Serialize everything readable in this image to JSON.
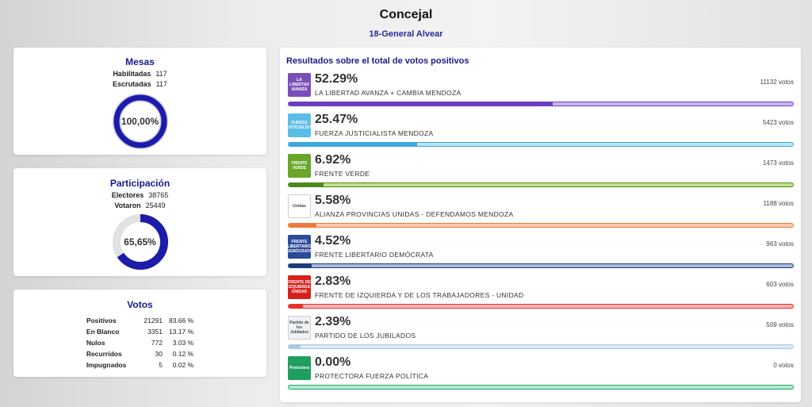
{
  "header": {
    "title": "Concejal",
    "subtitle": "18-General Alvear"
  },
  "mesas": {
    "title": "Mesas",
    "rows": [
      {
        "label": "Habilitadas",
        "value": "117"
      },
      {
        "label": "Escrutadas",
        "value": "117"
      }
    ],
    "donut_label": "100,00%",
    "donut_fraction": 1.0
  },
  "participacion": {
    "title": "Participación",
    "rows": [
      {
        "label": "Electores",
        "value": "38765"
      },
      {
        "label": "Votaron",
        "value": "25449"
      }
    ],
    "donut_label": "65,65%",
    "donut_fraction": 0.6565
  },
  "votos": {
    "title": "Votos",
    "rows": [
      {
        "label": "Positivos",
        "value": "21291",
        "pct": "83.66 %"
      },
      {
        "label": "En Blanco",
        "value": "3351",
        "pct": "13.17 %"
      },
      {
        "label": "Nulos",
        "value": "772",
        "pct": "3.03 %"
      },
      {
        "label": "Recurridos",
        "value": "30",
        "pct": "0.12 %"
      },
      {
        "label": "Impugnados",
        "value": "5",
        "pct": "0.02 %"
      }
    ]
  },
  "results": {
    "title": "Resultados sobre el total de votos positivos",
    "parties": [
      {
        "pct": "52.29%",
        "name": "LA LIBERTAD AVANZA + CAMBIA MENDOZA",
        "votes": "11132 votos",
        "fraction": 0.5229,
        "color": "#6b3fc0",
        "track": "#cbb6f0",
        "logo_bg": "#7a4fb8",
        "logo_icon": "lla-logo-icon",
        "logo_text": "LA LIBERTAD AVANZA"
      },
      {
        "pct": "25.47%",
        "name": "FUERZA JUSTICIALISTA MENDOZA",
        "votes": "5423 votos",
        "fraction": 0.2547,
        "color": "#39a9dc",
        "track": "#bfe4f5",
        "logo_bg": "#5cbce8",
        "logo_icon": "fjm-logo-icon",
        "logo_text": "FUERZA JUSTICIALISTA"
      },
      {
        "pct": "6.92%",
        "name": "FRENTE VERDE",
        "votes": "1473 votos",
        "fraction": 0.0692,
        "color": "#4a8a1c",
        "track": "#c5e08e",
        "logo_bg": "#6aa52a",
        "logo_icon": "frente-verde-logo-icon",
        "logo_text": "FRENTE VERDE"
      },
      {
        "pct": "5.58%",
        "name": "ALIANZA PROVINCIAS UNIDAS - DEFENDAMOS MENDOZA",
        "votes": "1188 votos",
        "fraction": 0.0558,
        "color": "#f07a3a",
        "track": "#fcc9ac",
        "logo_bg": "#ffffff",
        "logo_icon": "provincias-unidas-logo-icon",
        "logo_text": "Unidas"
      },
      {
        "pct": "4.52%",
        "name": "FRENTE LIBERTARIO DEMÓCRATA",
        "votes": "963 votos",
        "fraction": 0.0452,
        "color": "#1e3c7c",
        "track": "#a9b8d8",
        "logo_bg": "#2a4a9a",
        "logo_icon": "frente-libertario-logo-icon",
        "logo_text": "FRENTE LIBERTARIO DEMÓCRATA"
      },
      {
        "pct": "2.83%",
        "name": "FRENTE DE IZQUIERDA Y DE LOS TRABAJADORES - UNIDAD",
        "votes": "603 votos",
        "fraction": 0.0283,
        "color": "#e8322c",
        "track": "#f6b2b0",
        "logo_bg": "#d8201c",
        "logo_icon": "fit-logo-icon",
        "logo_text": "FRENTE DE IZQUIERDA UNIDAD"
      },
      {
        "pct": "2.39%",
        "name": "PARTIDO DE LOS JUBILADOS",
        "votes": "509 votos",
        "fraction": 0.0239,
        "color": "#a9c9e2",
        "track": "#dcebf6",
        "logo_bg": "#eef2f8",
        "logo_icon": "jubilados-logo-icon",
        "logo_text": "Partido de los Jubilados"
      },
      {
        "pct": "0.00%",
        "name": "PROTECTORA FUERZA POLÍTICA",
        "votes": "0 votos",
        "fraction": 0.0,
        "color": "#1aa86a",
        "track": "#b7e6d0",
        "logo_bg": "#1f9e5f",
        "logo_icon": "protectora-logo-icon",
        "logo_text": "Protectora"
      }
    ]
  }
}
